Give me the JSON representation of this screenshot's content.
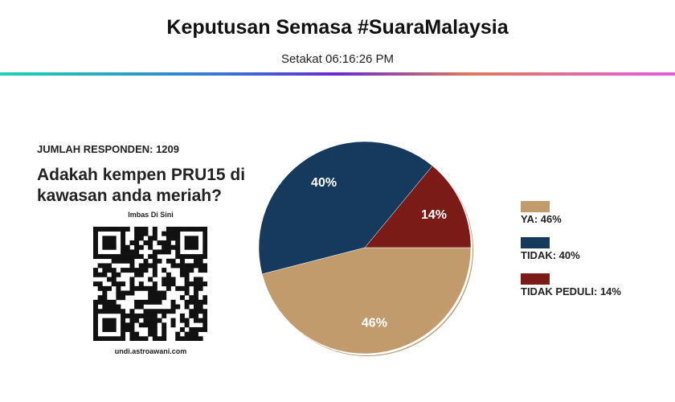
{
  "page": {
    "title": "Keputusan Semasa #SuaraMalaysia",
    "subtitle": "Setakat 06:16:26 PM",
    "respondents": "JUMLAH RESPONDEN: 1209",
    "question": "Adakah kempen PRU15 di kawasan anda meriah?",
    "scan_label": "Imbas Di Sini",
    "url": "undi.astroawani.com"
  },
  "chart_data": {
    "type": "pie",
    "categories": [
      "YA: 46%",
      "TIDAK: 40%",
      "TIDAK PEDULI: 14%"
    ],
    "values": [
      46,
      40,
      14
    ],
    "value_labels": [
      "46%",
      "40%",
      "14%"
    ],
    "colors": [
      "#c29b6c",
      "#153a5e",
      "#7b1b18"
    ]
  }
}
